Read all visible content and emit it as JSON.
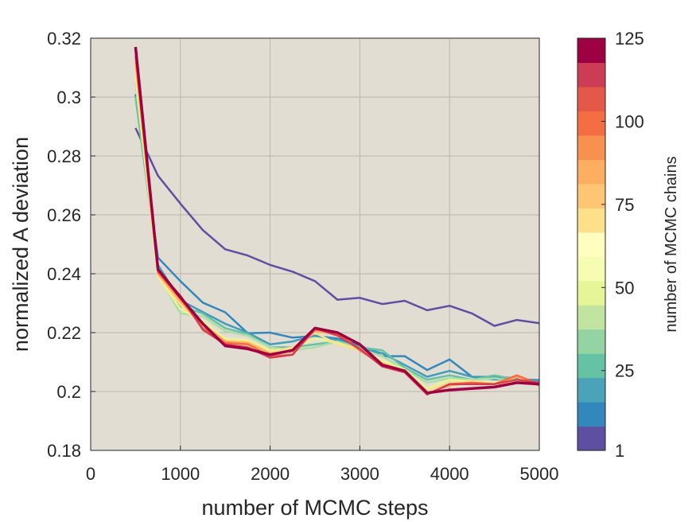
{
  "chart_data": {
    "type": "line",
    "xlabel": "number of MCMC steps",
    "ylabel": "normalized A deviation",
    "xlim": [
      0,
      5000
    ],
    "ylim": [
      0.18,
      0.32
    ],
    "xticks": [
      0,
      1000,
      2000,
      3000,
      4000,
      5000
    ],
    "xtick_labels": [
      "0",
      "1000",
      "2000",
      "3000",
      "4000",
      "5000"
    ],
    "yticks": [
      0.18,
      0.2,
      0.22,
      0.24,
      0.26,
      0.28,
      0.3,
      0.32
    ],
    "ytick_labels": [
      "0.18",
      "0.2",
      "0.22",
      "0.24",
      "0.26",
      "0.28",
      "0.3",
      "0.32"
    ],
    "grid": true,
    "background_color": "#e2ddd2",
    "x": [
      500,
      750,
      1000,
      1250,
      1500,
      1750,
      2000,
      2250,
      2500,
      2750,
      3000,
      3250,
      3500,
      3750,
      4000,
      4250,
      4500,
      4750,
      5000
    ],
    "series": [
      {
        "color": "#5e4fa2",
        "values": [
          0.2895,
          0.2733,
          0.2638,
          0.2548,
          0.2483,
          0.2462,
          0.243,
          0.2407,
          0.2375,
          0.2312,
          0.2318,
          0.2297,
          0.2308,
          0.2276,
          0.2291,
          0.2265,
          0.2223,
          0.2243,
          0.2232
        ]
      },
      {
        "color": "#3288bd",
        "values": [
          0.301,
          0.2455,
          0.2375,
          0.2302,
          0.2269,
          0.2198,
          0.22,
          0.2183,
          0.2189,
          0.218,
          0.2157,
          0.212,
          0.212,
          0.2073,
          0.2109,
          0.205,
          0.2041,
          0.2042,
          0.2039
        ]
      },
      {
        "color": "#429dbb",
        "values": [
          0.3005,
          0.243,
          0.231,
          0.227,
          0.223,
          0.22,
          0.216,
          0.217,
          0.219,
          0.2175,
          0.215,
          0.213,
          0.209,
          0.205,
          0.207,
          0.205,
          0.205,
          0.2045,
          0.2035
        ]
      },
      {
        "color": "#66c2a5",
        "values": [
          0.3,
          0.242,
          0.229,
          0.2265,
          0.2215,
          0.2195,
          0.215,
          0.215,
          0.216,
          0.217,
          0.215,
          0.214,
          0.208,
          0.204,
          0.2055,
          0.204,
          0.2055,
          0.204,
          0.203
        ]
      },
      {
        "color": "#abdda4",
        "values": [
          0.305,
          0.24,
          0.2265,
          0.2255,
          0.2205,
          0.219,
          0.215,
          0.214,
          0.215,
          0.217,
          0.2145,
          0.212,
          0.2075,
          0.203,
          0.2045,
          0.204,
          0.2045,
          0.2035,
          0.2025
        ]
      },
      {
        "color": "#e6f598",
        "values": [
          0.307,
          0.239,
          0.228,
          0.224,
          0.218,
          0.2175,
          0.214,
          0.2145,
          0.218,
          0.2165,
          0.214,
          0.2105,
          0.2075,
          0.201,
          0.204,
          0.2035,
          0.203,
          0.204,
          0.203
        ]
      },
      {
        "color": "#fee08b",
        "values": [
          0.31,
          0.2395,
          0.2295,
          0.2225,
          0.2175,
          0.217,
          0.2135,
          0.215,
          0.22,
          0.216,
          0.214,
          0.21,
          0.207,
          0.2005,
          0.203,
          0.2035,
          0.2025,
          0.203,
          0.2025
        ]
      },
      {
        "color": "#fdae61",
        "values": [
          0.312,
          0.24,
          0.2305,
          0.223,
          0.217,
          0.2165,
          0.213,
          0.2135,
          0.2205,
          0.2195,
          0.214,
          0.2095,
          0.207,
          0.1995,
          0.202,
          0.203,
          0.2025,
          0.205,
          0.202
        ]
      },
      {
        "color": "#f46d43",
        "values": [
          0.314,
          0.2405,
          0.2315,
          0.2215,
          0.2165,
          0.216,
          0.212,
          0.2125,
          0.221,
          0.22,
          0.214,
          0.209,
          0.207,
          0.199,
          0.2025,
          0.203,
          0.2025,
          0.2055,
          0.2025
        ]
      },
      {
        "color": "#d53e4f",
        "values": [
          0.316,
          0.241,
          0.2325,
          0.221,
          0.216,
          0.215,
          0.2115,
          0.2125,
          0.2215,
          0.219,
          0.2145,
          0.2085,
          0.2065,
          0.199,
          0.2025,
          0.2025,
          0.2025,
          0.204,
          0.203
        ]
      },
      {
        "color": "#9e0142",
        "values": [
          0.317,
          0.2415,
          0.232,
          0.223,
          0.2155,
          0.2145,
          0.2125,
          0.214,
          0.2215,
          0.22,
          0.216,
          0.209,
          0.207,
          0.1995,
          0.2005,
          0.201,
          0.2015,
          0.203,
          0.2025
        ]
      }
    ],
    "colorbar": {
      "label": "number of MCMC chains",
      "range": [
        1,
        125
      ],
      "ticks": [
        1,
        25,
        50,
        75,
        100,
        125
      ],
      "tick_labels": [
        "1",
        "25",
        "50",
        "75",
        "100",
        "125"
      ],
      "colors": [
        "#5e4fa2",
        "#3288bd",
        "#4aa3b8",
        "#66c2a5",
        "#94d4a4",
        "#c1e5a0",
        "#e6f598",
        "#f7fcb3",
        "#fffebe",
        "#fee08b",
        "#fdc574",
        "#fdae61",
        "#f8904f",
        "#f46d43",
        "#e4584a",
        "#cc3d55",
        "#9e0142"
      ]
    }
  }
}
